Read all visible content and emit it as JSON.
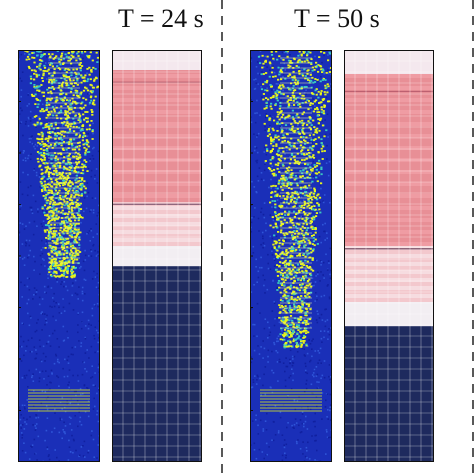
{
  "panels": [
    {
      "title": "T = 24 s",
      "time_s": 24,
      "red_region_bottom_fraction": 0.52
    },
    {
      "title": "T = 50 s",
      "time_s": 50,
      "red_region_bottom_fraction": 0.67
    }
  ],
  "colors": {
    "heatmap_background": "#1a2fb8",
    "heatmap_hot": "#e8f51a",
    "heatmap_mid": "#38c9c0",
    "sim_fluid": "#1e2a5e",
    "sim_mixed": "#e88f96",
    "sim_light": "#f6dce0",
    "grid_line": "#ffffff",
    "divider": "#222222"
  }
}
